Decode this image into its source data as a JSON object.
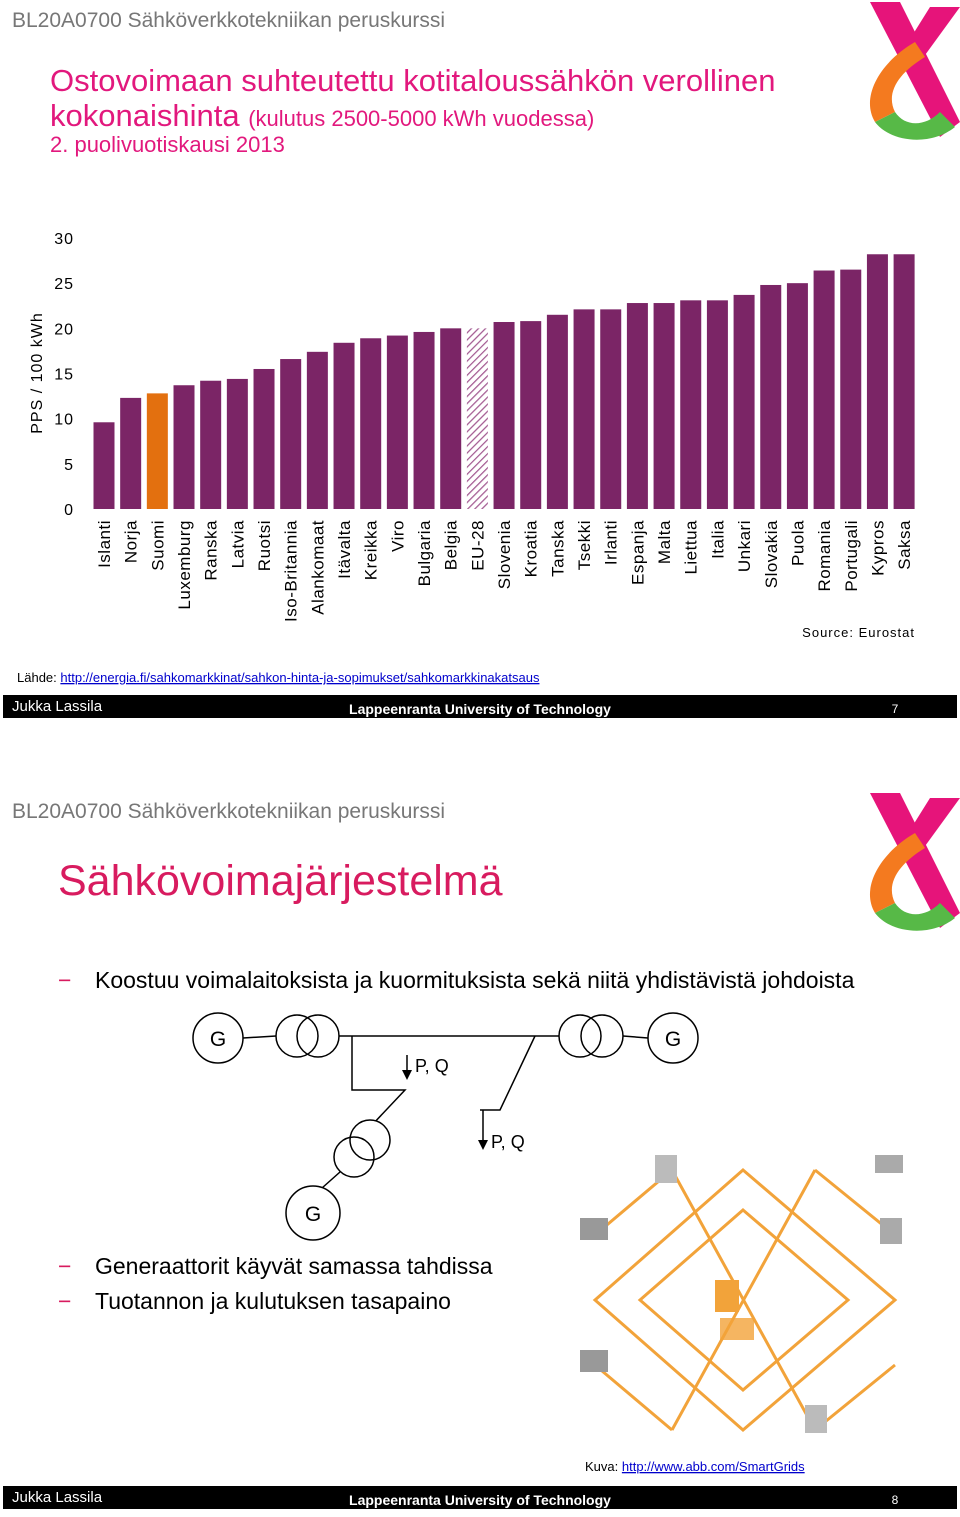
{
  "slides": [
    {
      "course": "BL20A0700 Sähköverkkotekniikan peruskurssi",
      "title_line1": "Ostovoimaan suhteutettu kotitaloussähkön verollinen",
      "title_line2": "kokonaishinta",
      "title_note": "(kulutus 2500-5000 kWh vuodessa)",
      "title_line3": "2. puolivuotiskausi 2013",
      "source": "Source: Eurostat",
      "reference_label": "Lähde:",
      "reference_link": "http://energia.fi/sahkomarkkinat/sahkon-hinta-ja-sopimukset/sahkomarkkinakatsaus",
      "footer": {
        "author": "Jukka Lassila",
        "university": "Lappeenranta University of Technology",
        "page": "7"
      }
    },
    {
      "course": "BL20A0700 Sähköverkkotekniikan peruskurssi",
      "title": "Sähkövoimajärjestelmä",
      "bullets": [
        "Koostuu voimalaitoksista ja kuormituksista sekä niitä yhdistävistä johdoista",
        "Generaattorit käyvät samassa tahdissa",
        "Tuotannon ja kulutuksen tasapaino"
      ],
      "diagram": {
        "generator_left": "G",
        "generator_right": "G",
        "generator_bottom": "G",
        "flow_top": "P, Q",
        "flow_bottom": "P, Q"
      },
      "image_caption_label": "Kuva:",
      "image_caption_link": "http://www.abb.com/SmartGrids",
      "footer": {
        "author": "Jukka Lassila",
        "university": "Lappeenranta University of Technology",
        "page": "8"
      }
    }
  ],
  "chart_data": {
    "type": "bar",
    "y_label": "PPS / 100 kWh",
    "categories": [
      "Islanti",
      "Norja",
      "Suomi",
      "Luxemburg",
      "Ranska",
      "Latvia",
      "Ruotsi",
      "Iso-Britannia",
      "Alankomaat",
      "Itävalta",
      "Kreikka",
      "Viro",
      "Bulgaria",
      "Belgia",
      "EU-28",
      "Slovenia",
      "Kroatia",
      "Tanska",
      "Tsekki",
      "Irlanti",
      "Espanja",
      "Malta",
      "Liettua",
      "Italia",
      "Unkari",
      "Slovakia",
      "Puola",
      "Romania",
      "Portugali",
      "Kypros",
      "Saksa"
    ],
    "values": [
      9.6,
      12.3,
      12.8,
      13.7,
      14.2,
      14.4,
      15.5,
      16.6,
      17.4,
      18.4,
      18.9,
      19.2,
      19.6,
      20.0,
      20.0,
      20.7,
      20.8,
      21.5,
      22.1,
      22.1,
      22.8,
      22.8,
      23.1,
      23.1,
      23.7,
      24.8,
      25.0,
      26.4,
      26.5,
      28.2,
      28.2
    ],
    "color": "#7b2566",
    "highlight_color": "#e3700f",
    "highlight_index": 2,
    "hatched_index": 14,
    "ylim": [
      0,
      30
    ],
    "yticks": [
      0,
      5,
      10,
      15,
      20,
      25,
      30
    ],
    "grid": false
  }
}
